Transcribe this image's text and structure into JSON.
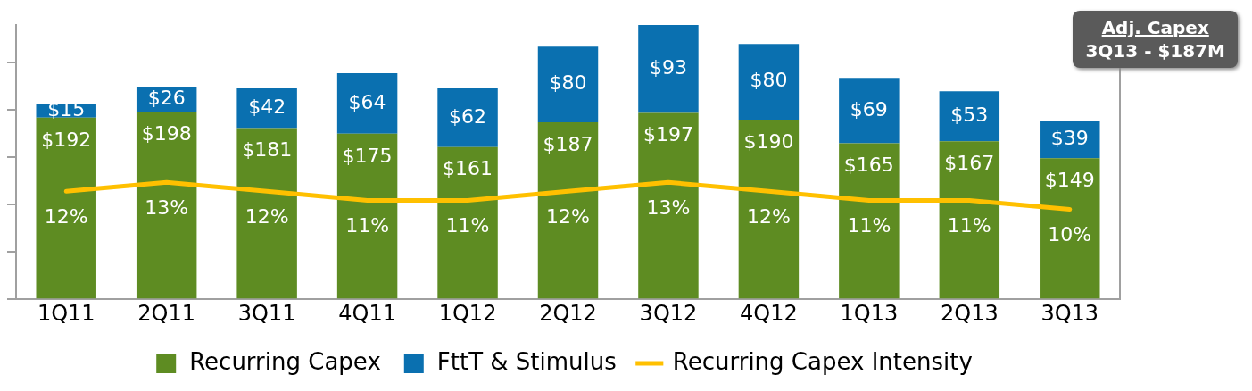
{
  "chart_data": {
    "type": "bar",
    "stacked": true,
    "categories": [
      "1Q11",
      "2Q11",
      "3Q11",
      "4Q11",
      "1Q12",
      "2Q12",
      "3Q12",
      "4Q12",
      "1Q13",
      "2Q13",
      "3Q13"
    ],
    "series": [
      {
        "name": "Recurring Capex",
        "color": "#5e8c22",
        "values": [
          192,
          198,
          181,
          175,
          161,
          187,
          197,
          190,
          165,
          167,
          149
        ],
        "value_labels": [
          "$192",
          "$198",
          "$181",
          "$175",
          "$161",
          "$187",
          "$197",
          "$190",
          "$165",
          "$167",
          "$149"
        ]
      },
      {
        "name": "FttT & Stimulus",
        "color": "#0a70b0",
        "values": [
          15,
          26,
          42,
          64,
          62,
          80,
          93,
          80,
          69,
          53,
          39
        ],
        "value_labels": [
          "$15",
          "$26",
          "$42",
          "$64",
          "$62",
          "$80",
          "$93",
          "$80",
          "$69",
          "$53",
          "$39"
        ]
      },
      {
        "name": "Recurring Capex Intensity",
        "type": "line",
        "axis": "y2",
        "color": "#ffc000",
        "values": [
          12,
          13,
          12,
          11,
          11,
          12,
          13,
          12,
          11,
          11,
          10
        ],
        "value_labels": [
          "12%",
          "13%",
          "12%",
          "11%",
          "11%",
          "12%",
          "13%",
          "12%",
          "11%",
          "11%",
          "10%"
        ]
      }
    ],
    "ylim": [
      0,
      290
    ],
    "yticks": [
      {
        "value": 0,
        "label": null
      },
      {
        "value": 50,
        "label": null
      },
      {
        "value": 100,
        "label": null
      },
      {
        "value": 150,
        "label": null
      },
      {
        "value": 200,
        "label": null
      },
      {
        "value": 250,
        "label": null
      }
    ],
    "y2lim": [
      0,
      30.5
    ],
    "tick_labels": "x",
    "grid": false,
    "legend": "bottom",
    "marker": "none",
    "annotations": [
      "Adj. Capex\n3Q13 - $187M"
    ]
  }
}
